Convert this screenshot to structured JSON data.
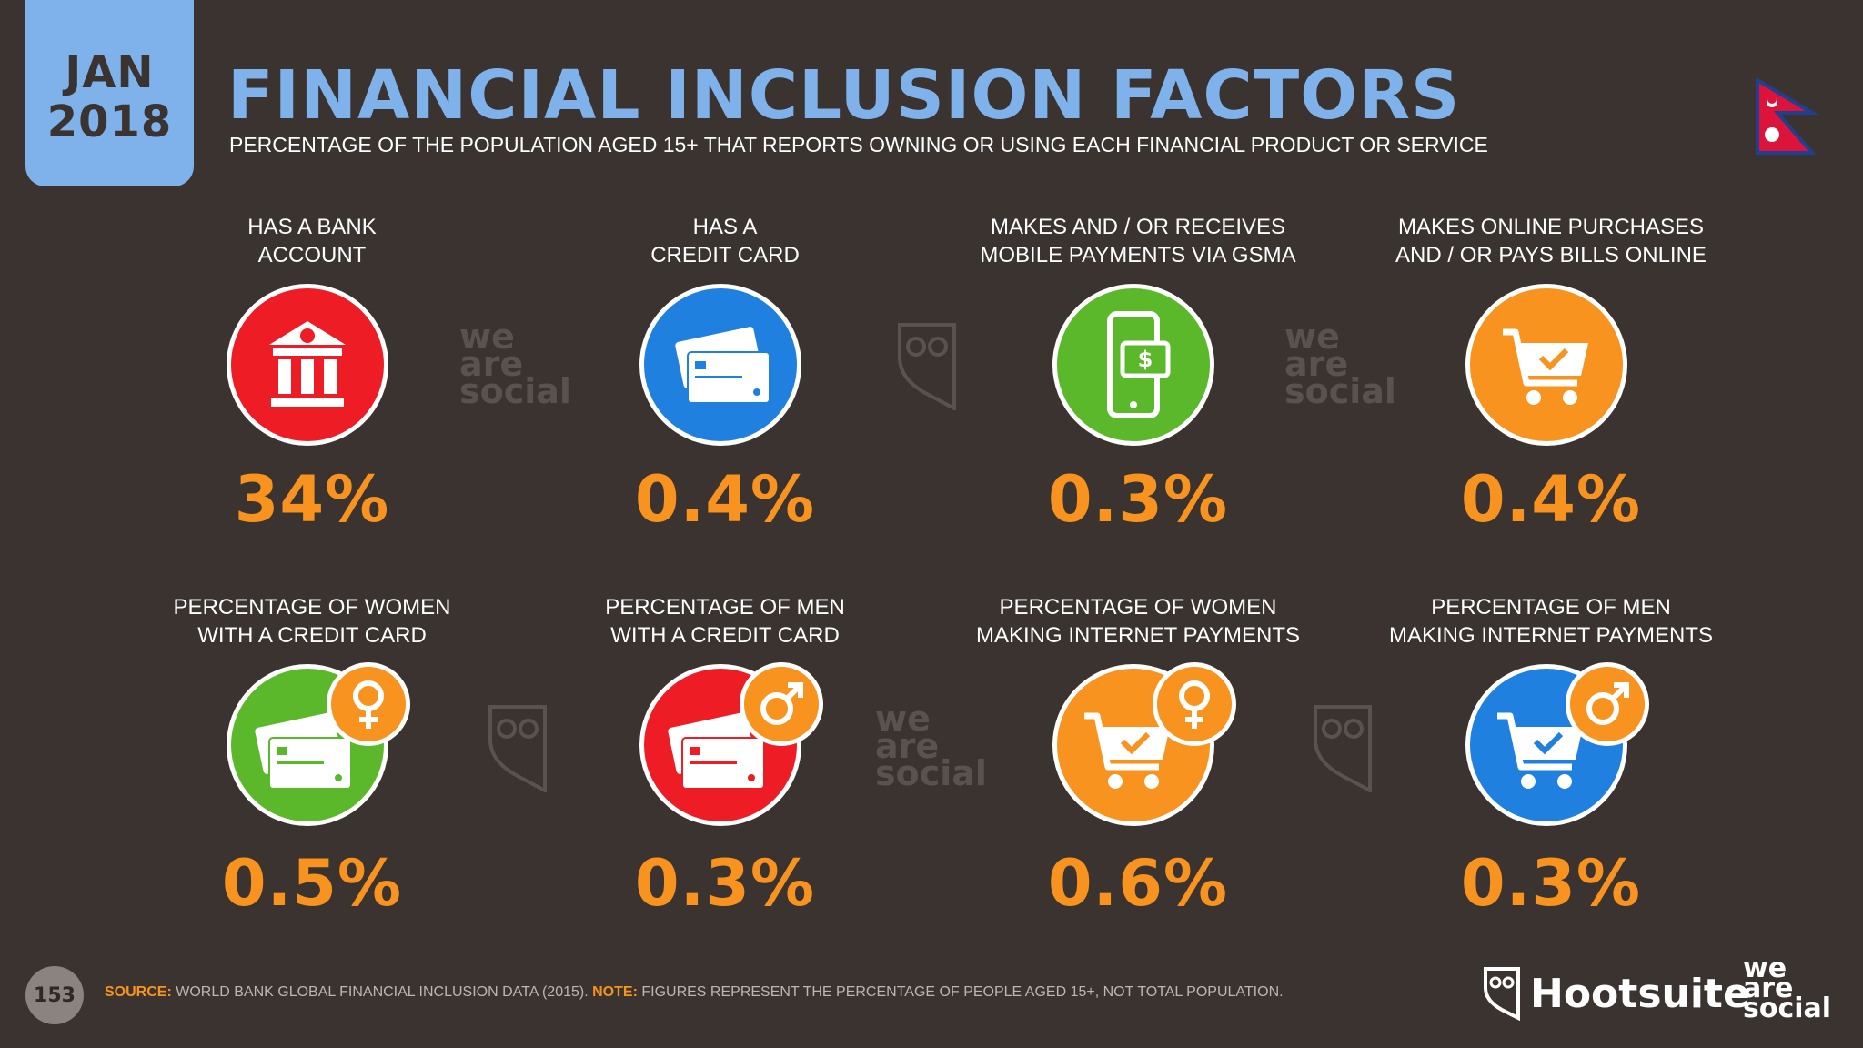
{
  "header": {
    "date_month": "JAN",
    "date_year": "2018",
    "title": "FINANCIAL INCLUSION FACTORS",
    "subtitle": "PERCENTAGE OF THE POPULATION AGED 15+ THAT REPORTS OWNING OR USING EACH FINANCIAL PRODUCT OR SERVICE"
  },
  "colors": {
    "background": "#3a3330",
    "accent_blue": "#7fb2ea",
    "value_orange": "#f7931e",
    "red": "#ee1c25",
    "blue": "#1f80e0",
    "green": "#5cb82b",
    "orange": "#f7931e"
  },
  "items": [
    {
      "label_line1": "HAS A BANK",
      "label_line2": "ACCOUNT",
      "value": "34%",
      "icon": "bank-icon",
      "color": "#ee1c25"
    },
    {
      "label_line1": "HAS A",
      "label_line2": "CREDIT CARD",
      "value": "0.4%",
      "icon": "credit-card-icon",
      "color": "#1f80e0"
    },
    {
      "label_line1": "MAKES AND / OR RECEIVES",
      "label_line2": "MOBILE PAYMENTS VIA GSMA",
      "value": "0.3%",
      "icon": "mobile-payment-icon",
      "color": "#5cb82b"
    },
    {
      "label_line1": "MAKES ONLINE PURCHASES",
      "label_line2": "AND / OR PAYS BILLS ONLINE",
      "value": "0.4%",
      "icon": "shopping-cart-icon",
      "color": "#f7931e"
    },
    {
      "label_line1": "PERCENTAGE OF WOMEN",
      "label_line2": "WITH A CREDIT CARD",
      "value": "0.5%",
      "icon": "credit-card-icon",
      "badge": "female-icon",
      "color": "#5cb82b"
    },
    {
      "label_line1": "PERCENTAGE OF MEN",
      "label_line2": "WITH A CREDIT CARD",
      "value": "0.3%",
      "icon": "credit-card-icon",
      "badge": "male-icon",
      "color": "#ee1c25"
    },
    {
      "label_line1": "PERCENTAGE OF WOMEN",
      "label_line2": "MAKING INTERNET PAYMENTS",
      "value": "0.6%",
      "icon": "shopping-cart-icon",
      "badge": "female-icon",
      "color": "#f7931e"
    },
    {
      "label_line1": "PERCENTAGE OF MEN",
      "label_line2": "MAKING INTERNET PAYMENTS",
      "value": "0.3%",
      "icon": "shopping-cart-icon",
      "badge": "male-icon",
      "color": "#1f80e0"
    }
  ],
  "footer": {
    "page_number": "153",
    "source_label": "SOURCE:",
    "source_text": " WORLD BANK GLOBAL FINANCIAL INCLUSION DATA (2015). ",
    "note_label": "NOTE:",
    "note_text": " FIGURES REPRESENT THE PERCENTAGE OF PEOPLE AGED 15+, NOT TOTAL POPULATION.",
    "hootsuite": "Hootsuite",
    "was_line1": "we",
    "was_line2": "are",
    "was_line3": "social"
  },
  "watermark": {
    "line1": "we",
    "line2": "are",
    "line3": "social"
  }
}
